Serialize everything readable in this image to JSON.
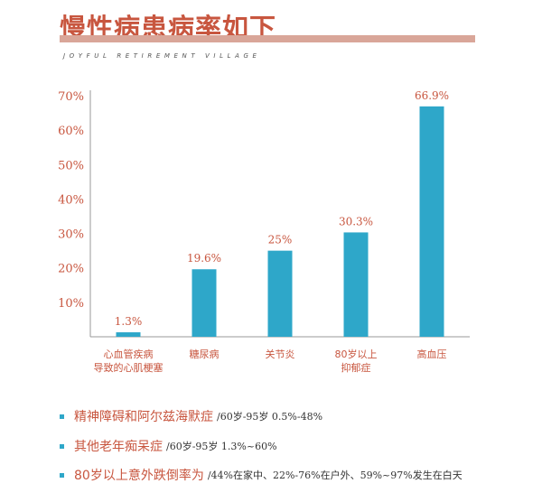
{
  "header": {
    "title": "慢性病患病率如下",
    "subtitle": "JOYFUL RETIREMENT VILLAGE"
  },
  "colors": {
    "bar": "#2ea7c9",
    "label": "#c8563f",
    "axis": "#999999"
  },
  "chart_data": {
    "type": "bar",
    "title": "",
    "xlabel": "",
    "ylabel": "",
    "ylim": [
      0,
      70
    ],
    "yticks": [
      "10%",
      "20%",
      "30%",
      "40%",
      "50%",
      "60%",
      "70%"
    ],
    "grid": false,
    "categories": [
      [
        "心血管疾病",
        "导致的心肌梗塞"
      ],
      [
        "糖尿病"
      ],
      [
        "关节炎"
      ],
      [
        "80岁以上",
        "抑郁症"
      ],
      [
        "高血压"
      ]
    ],
    "values": [
      1.3,
      19.6,
      25,
      30.3,
      66.9
    ],
    "value_labels": [
      "1.3%",
      "19.6%",
      "25%",
      "30.3%",
      "66.9%"
    ]
  },
  "notes": [
    {
      "main": "精神障碍和阿尔兹海默症",
      "detail": "/60岁-95岁 0.5%-48%"
    },
    {
      "main": "其他老年痴呆症",
      "detail": "/60岁-95岁 1.3%~60%"
    },
    {
      "main": "80岁以上意外跌倒率为",
      "detail": "/44%在家中、22%-76%在户外、59%~97%发生在白天"
    }
  ]
}
